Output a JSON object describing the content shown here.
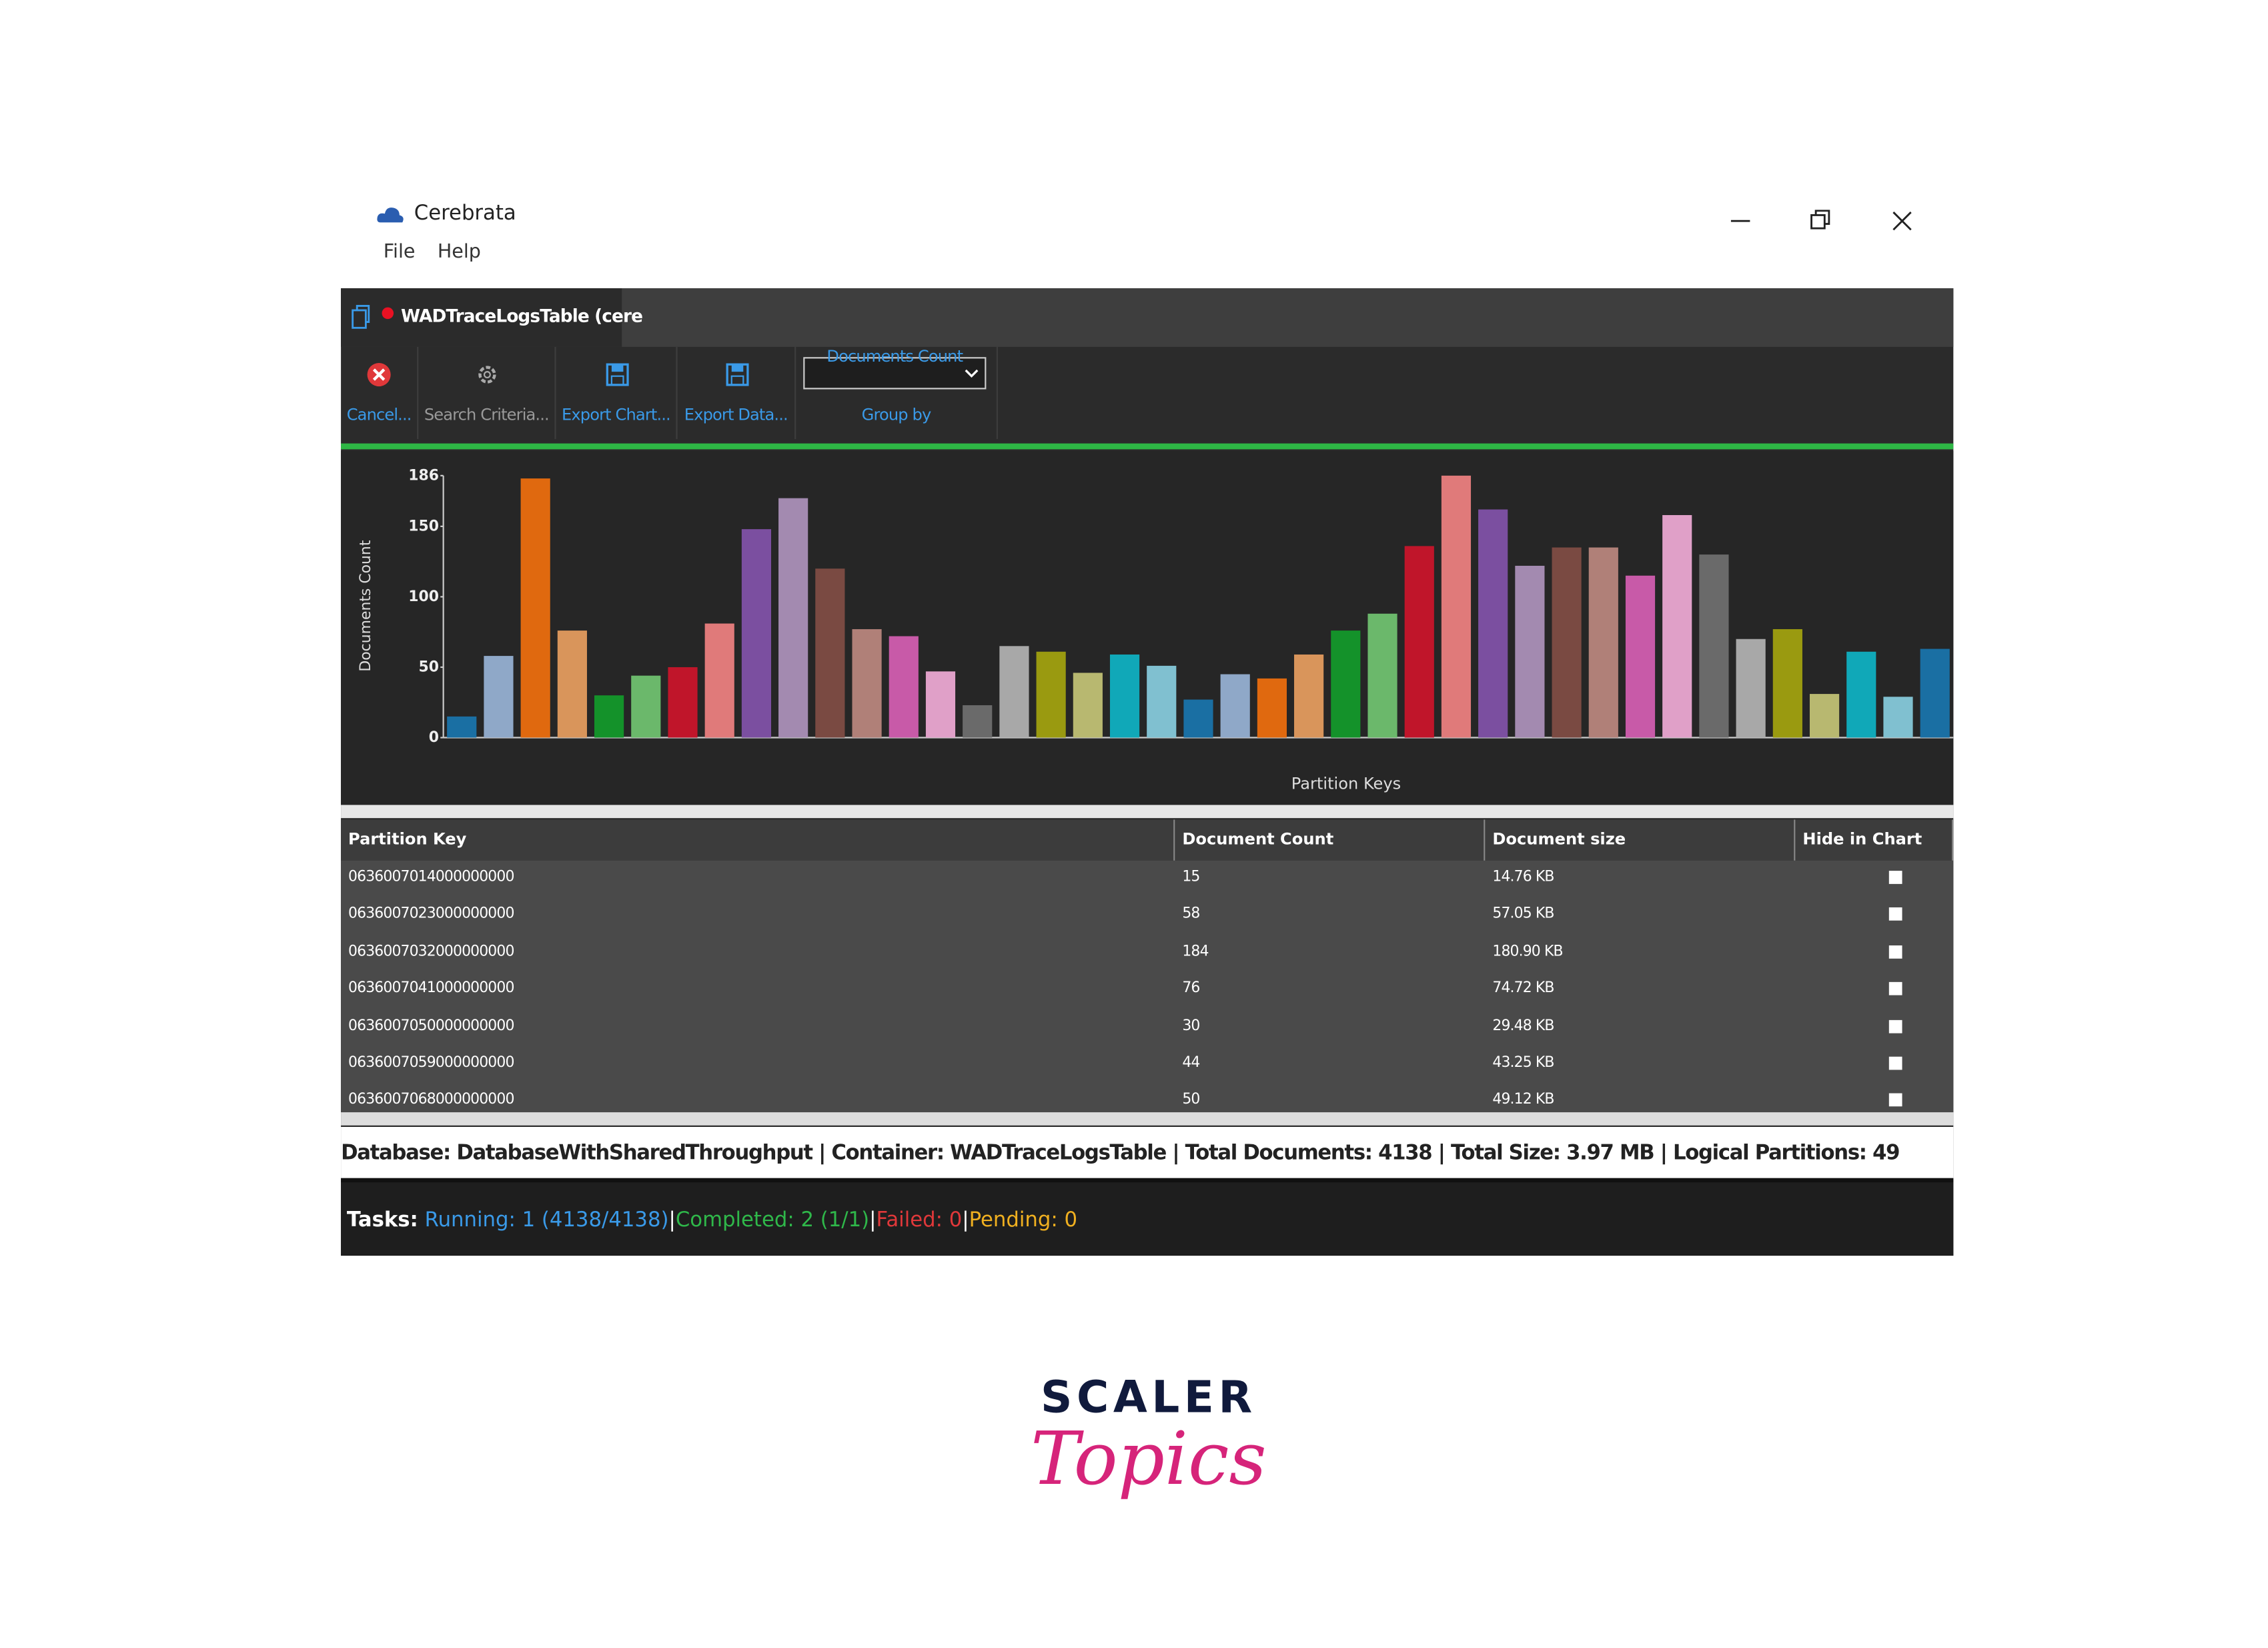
{
  "window": {
    "title": "Cerebrata",
    "menu": [
      "File",
      "Help"
    ]
  },
  "tab": {
    "title": "WADTraceLogsTable (cere"
  },
  "toolbar": {
    "buttons": [
      "Cancel...",
      "Search Criteria...",
      "Export Chart...",
      "Export Data..."
    ],
    "dropdown": "Documents Count",
    "dropdown_label": "Group by"
  },
  "chart_data": {
    "type": "bar",
    "y_label": "Documents Count",
    "x_label": "Partition Keys",
    "values": [
      15,
      58,
      184,
      76,
      30,
      44,
      50,
      81,
      148,
      170,
      120,
      77,
      72,
      47,
      23,
      65,
      61,
      46,
      59,
      51,
      27,
      45,
      42,
      59,
      76,
      88,
      136,
      186,
      162,
      122,
      135,
      135,
      115,
      158,
      130,
      70,
      77,
      31,
      61,
      29,
      63
    ],
    "colors": [
      "#1a6fa3",
      "#8fa8c8",
      "#e0690f",
      "#d9955b",
      "#14922a",
      "#6bb86b",
      "#c0152a",
      "#e07a7a",
      "#7b4fa0",
      "#a38ab0",
      "#7a4a42",
      "#b08078",
      "#c85aa8",
      "#e0a0c8",
      "#6a6a6a",
      "#a8a8a8",
      "#9a9a10",
      "#b8b870",
      "#10a8b8",
      "#80c0d0",
      "#1a6fa3",
      "#8fa8c8",
      "#e0690f",
      "#d9955b",
      "#14922a",
      "#6bb86b",
      "#c0152a",
      "#e07a7a",
      "#7b4fa0",
      "#a38ab0",
      "#7a4a42",
      "#b08078",
      "#c85aa8",
      "#e0a0c8",
      "#6a6a6a",
      "#a8a8a8",
      "#9a9a10",
      "#b8b870",
      "#10a8b8",
      "#80c0d0",
      "#1a6fa3"
    ],
    "ylim": [
      0,
      186
    ],
    "yticks": [
      0,
      50,
      100,
      150,
      186
    ]
  },
  "table": {
    "columns": [
      "Partition Key",
      "Document Count",
      "Document size",
      "Hide in Chart"
    ],
    "rows": [
      [
        "0636007014000000000",
        "15",
        "14.76 KB"
      ],
      [
        "0636007023000000000",
        "58",
        "57.05 KB"
      ],
      [
        "0636007032000000000",
        "184",
        "180.90 KB"
      ],
      [
        "0636007041000000000",
        "76",
        "74.72 KB"
      ],
      [
        "0636007050000000000",
        "30",
        "29.48 KB"
      ],
      [
        "0636007059000000000",
        "44",
        "43.25 KB"
      ],
      [
        "0636007068000000000",
        "50",
        "49.12 KB"
      ]
    ]
  },
  "status": "Database: DatabaseWithSharedThroughput | Container: WADTraceLogsTable | Total Documents: 4138 | Total Size: 3.97 MB | Logical Partitions: 49",
  "tasks": {
    "label": "Tasks:",
    "running": "Running: 1 (4138/4138)",
    "completed": "Completed: 2 (1/1)",
    "failed": "Failed: 0",
    "pending": "Pending: 0",
    "separator": "|"
  },
  "logo": {
    "brand": "SCALER",
    "sub": "Topics"
  }
}
